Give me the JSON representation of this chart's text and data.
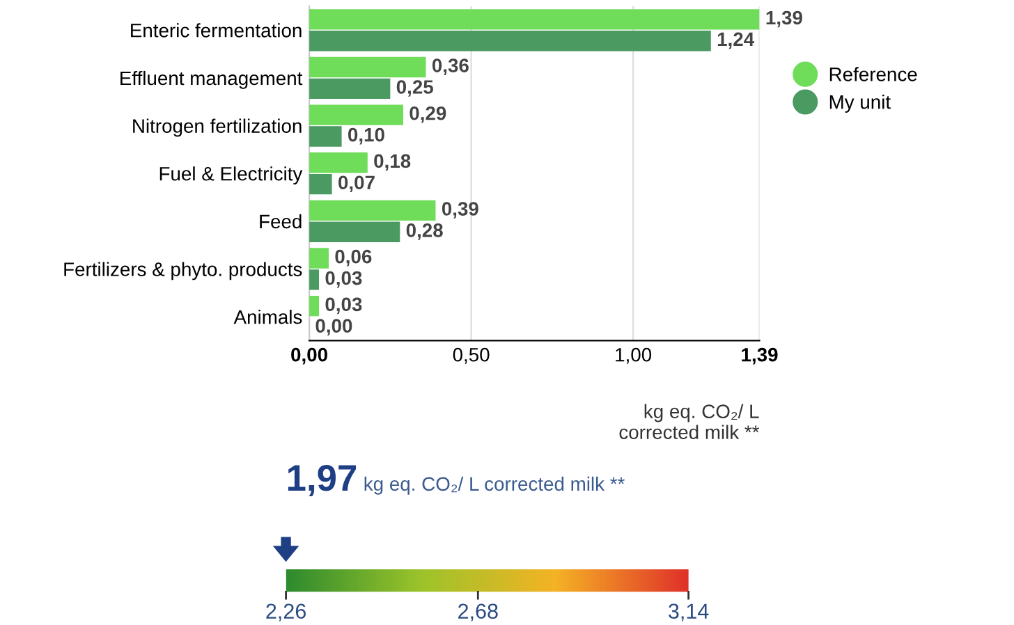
{
  "chart_data": [
    {
      "type": "bar",
      "orientation": "horizontal",
      "categories": [
        "Enteric fermentation",
        "Effluent management",
        "Nitrogen fertilization",
        "Fuel & Electricity",
        "Feed",
        "Fertilizers & phyto. products",
        "Animals"
      ],
      "series": [
        {
          "name": "Reference",
          "color": "#6fdc5a",
          "values": [
            1.39,
            0.36,
            0.29,
            0.18,
            0.39,
            0.06,
            0.03
          ],
          "value_labels": [
            "1,39",
            "0,36",
            "0,29",
            "0,18",
            "0,39",
            "0,06",
            "0,03"
          ]
        },
        {
          "name": "My unit",
          "color": "#4a9a62",
          "values": [
            1.24,
            0.25,
            0.1,
            0.07,
            0.28,
            0.03,
            0.0
          ],
          "value_labels": [
            "1,24",
            "0,25",
            "0,10",
            "0,07",
            "0,28",
            "0,03",
            "0,00"
          ]
        }
      ],
      "xlim": [
        0,
        1.39
      ],
      "xticks": [
        {
          "value": 0,
          "label": "0,00"
        },
        {
          "value": 0.5,
          "label": "0,50"
        },
        {
          "value": 1.0,
          "label": "1,00"
        },
        {
          "value": 1.39,
          "label": "1,39"
        }
      ],
      "xlabel": "kg eq. CO₂/ L\ncorrected milk **",
      "grid": "x",
      "legend": "right"
    },
    {
      "type": "other",
      "title": "1,97",
      "subtitle": "kg eq. CO₂/ L corrected milk **",
      "colors": [
        "#2e8b2e",
        "#9cc42a",
        "#f5b325",
        "#e0302a"
      ],
      "annotations": [
        "2,26",
        "2,68",
        "3,14"
      ]
    }
  ]
}
